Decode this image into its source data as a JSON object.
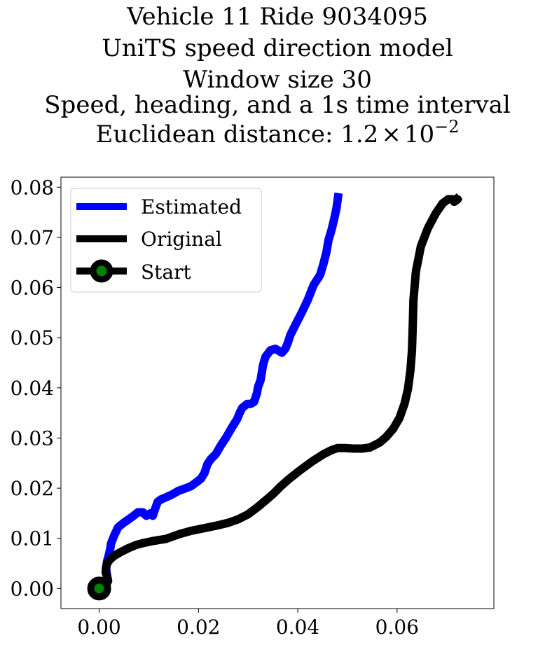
{
  "chart_data": {
    "type": "line",
    "title_lines": [
      "Vehicle 11 Ride 9034095",
      "UniTS speed direction model",
      "Window size 30",
      "Speed, heading, and a 1s time interval",
      "Euclidean distance: "
    ],
    "distance_mantissa": "1.2",
    "distance_times": "×",
    "distance_base": "10",
    "distance_exponent": "−2",
    "xlabel": "",
    "ylabel": "",
    "xlim": [
      -0.0077,
      0.0795
    ],
    "ylim": [
      -0.004,
      0.082
    ],
    "x_ticks": [
      0.0,
      0.02,
      0.04,
      0.06
    ],
    "x_tick_labels": [
      "0.00",
      "0.02",
      "0.04",
      "0.06"
    ],
    "y_ticks": [
      0.0,
      0.01,
      0.02,
      0.03,
      0.04,
      0.05,
      0.06,
      0.07,
      0.08
    ],
    "y_tick_labels": [
      "0.00",
      "0.01",
      "0.02",
      "0.03",
      "0.04",
      "0.05",
      "0.06",
      "0.07",
      "0.08"
    ],
    "grid": false,
    "legend_position": "top-left",
    "series": [
      {
        "name": "Estimated",
        "color": "#0000ff",
        "x": [
          0.0,
          0.0003,
          0.0007,
          0.001,
          0.0013,
          0.0016,
          0.0014,
          0.0016,
          0.0019,
          0.0022,
          0.0024,
          0.003,
          0.0038,
          0.0048,
          0.0058,
          0.0068,
          0.0078,
          0.0088,
          0.0095,
          0.0103,
          0.0108,
          0.0113,
          0.0118,
          0.0125,
          0.0135,
          0.0148,
          0.016,
          0.0172,
          0.0185,
          0.0196,
          0.0205,
          0.0212,
          0.0218,
          0.0225,
          0.0235,
          0.0245,
          0.0255,
          0.0262,
          0.0268,
          0.0273,
          0.0278,
          0.0283,
          0.0288,
          0.0298,
          0.0305,
          0.0312,
          0.0318,
          0.032,
          0.0325,
          0.033,
          0.0335,
          0.0345,
          0.0355,
          0.0368,
          0.0375,
          0.038,
          0.0385,
          0.0395,
          0.0408,
          0.042,
          0.0432,
          0.0445,
          0.0452,
          0.0458,
          0.0462,
          0.0468,
          0.0473,
          0.0478,
          0.0481
        ],
        "y": [
          0.0,
          0.0015,
          0.0012,
          0.0015,
          0.0015,
          0.0025,
          0.004,
          0.0055,
          0.0065,
          0.0078,
          0.009,
          0.0105,
          0.0122,
          0.013,
          0.0137,
          0.0144,
          0.0152,
          0.0152,
          0.0145,
          0.015,
          0.0145,
          0.016,
          0.0173,
          0.0178,
          0.0182,
          0.0188,
          0.0195,
          0.0199,
          0.0204,
          0.0212,
          0.0219,
          0.023,
          0.0248,
          0.0258,
          0.0268,
          0.0285,
          0.03,
          0.0312,
          0.0322,
          0.033,
          0.0338,
          0.035,
          0.036,
          0.0368,
          0.0368,
          0.0372,
          0.039,
          0.0402,
          0.0415,
          0.0445,
          0.0462,
          0.0475,
          0.0478,
          0.047,
          0.0478,
          0.049,
          0.0505,
          0.0525,
          0.055,
          0.0575,
          0.0605,
          0.0625,
          0.0648,
          0.0672,
          0.0695,
          0.0715,
          0.0735,
          0.0758,
          0.078
        ]
      },
      {
        "name": "Original",
        "color": "#000000",
        "x": [
          0.0,
          0.0008,
          0.0015,
          0.0018,
          0.0016,
          0.0013,
          0.0014,
          0.0017,
          0.0022,
          0.003,
          0.0042,
          0.0058,
          0.0075,
          0.009,
          0.011,
          0.0135,
          0.016,
          0.0185,
          0.021,
          0.0235,
          0.026,
          0.028,
          0.03,
          0.032,
          0.0338,
          0.0352,
          0.0365,
          0.0382,
          0.0405,
          0.043,
          0.0452,
          0.0468,
          0.048,
          0.0495,
          0.0512,
          0.053,
          0.0545,
          0.0565,
          0.0578,
          0.0592,
          0.0605,
          0.0615,
          0.0622,
          0.0627,
          0.063,
          0.0631,
          0.0632,
          0.0633,
          0.0638,
          0.0648,
          0.0662,
          0.0678,
          0.0692,
          0.0703,
          0.0712,
          0.0718,
          0.0722,
          0.0715,
          0.072
        ],
        "y": [
          0.0,
          0.0004,
          0.0009,
          0.0015,
          0.0025,
          0.0032,
          0.0043,
          0.0052,
          0.0058,
          0.0065,
          0.0072,
          0.008,
          0.0087,
          0.0091,
          0.0095,
          0.0099,
          0.0108,
          0.0115,
          0.012,
          0.0125,
          0.0131,
          0.0138,
          0.0148,
          0.0163,
          0.0178,
          0.019,
          0.0203,
          0.0218,
          0.0236,
          0.0254,
          0.0268,
          0.0276,
          0.028,
          0.028,
          0.0279,
          0.0279,
          0.0281,
          0.0291,
          0.0302,
          0.0318,
          0.034,
          0.0368,
          0.0398,
          0.0435,
          0.0475,
          0.0505,
          0.0538,
          0.0575,
          0.0632,
          0.0682,
          0.0718,
          0.0748,
          0.0768,
          0.0776,
          0.0776,
          0.0773,
          0.0776,
          0.0771,
          0.0776
        ]
      }
    ],
    "start_marker": {
      "name": "Start",
      "x": 0.0,
      "y": 0.0,
      "fill_color": "#008000",
      "edge_color": "#000000"
    }
  }
}
